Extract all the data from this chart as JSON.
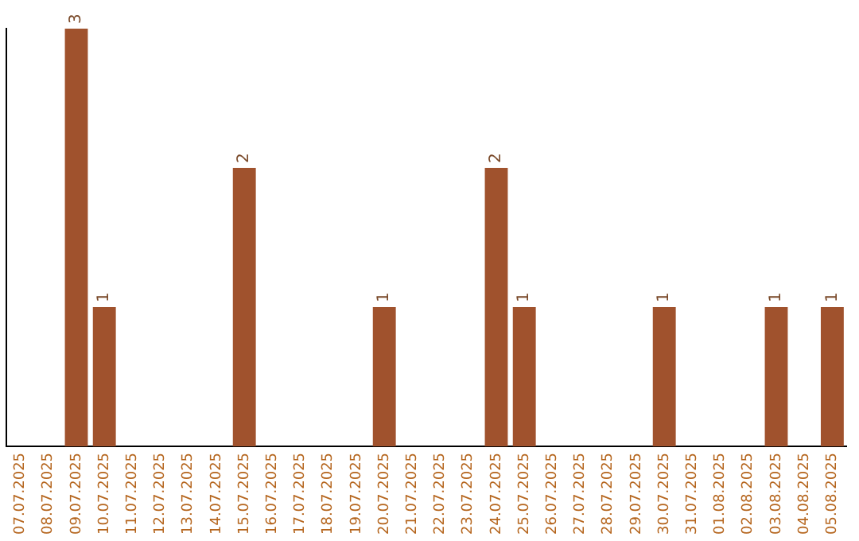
{
  "chart_data": {
    "type": "bar",
    "categories": [
      "07.07.2025",
      "08.07.2025",
      "09.07.2025",
      "10.07.2025",
      "11.07.2025",
      "12.07.2025",
      "13.07.2025",
      "14.07.2025",
      "15.07.2025",
      "16.07.2025",
      "17.07.2025",
      "18.07.2025",
      "19.07.2025",
      "20.07.2025",
      "21.07.2025",
      "22.07.2025",
      "23.07.2025",
      "24.07.2025",
      "25.07.2025",
      "26.07.2025",
      "27.07.2025",
      "28.07.2025",
      "29.07.2025",
      "30.07.2025",
      "31.07.2025",
      "01.08.2025",
      "02.08.2025",
      "03.08.2025",
      "04.08.2025",
      "05.08.2025"
    ],
    "values": [
      0,
      0,
      3,
      1,
      0,
      0,
      0,
      0,
      2,
      0,
      0,
      0,
      0,
      1,
      0,
      0,
      0,
      2,
      1,
      0,
      0,
      0,
      0,
      1,
      0,
      0,
      0,
      1,
      0,
      1
    ],
    "color": "#a0522d",
    "ylim": [
      0,
      3
    ],
    "tick_labels": "x",
    "value_labels": [
      null,
      null,
      "3",
      "1",
      null,
      null,
      null,
      null,
      "2",
      null,
      null,
      null,
      null,
      "1",
      null,
      null,
      null,
      "2",
      "1",
      null,
      null,
      null,
      null,
      "1",
      null,
      null,
      null,
      "1",
      null,
      "1"
    ],
    "grid": false,
    "legend": false
  }
}
